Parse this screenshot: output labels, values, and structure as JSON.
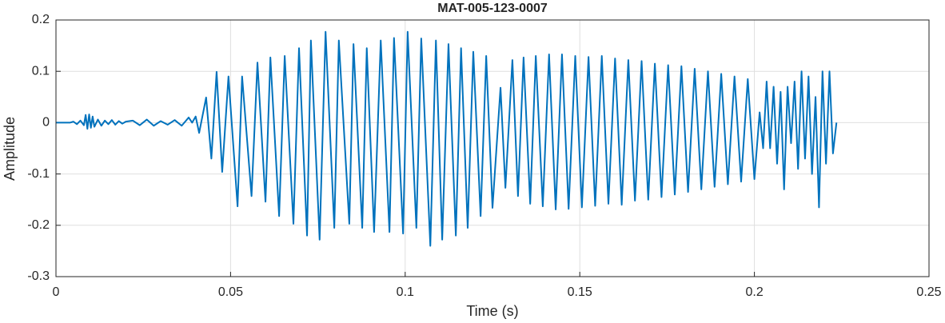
{
  "chart_data": {
    "type": "line",
    "title": "MAT-005-123-0007",
    "xlabel": "Time (s)",
    "ylabel": "Amplitude",
    "xlim": [
      0,
      0.25
    ],
    "ylim": [
      -0.3,
      0.2
    ],
    "xticks": [
      0,
      0.05,
      0.1,
      0.15,
      0.2,
      0.25
    ],
    "yticks": [
      -0.3,
      -0.2,
      -0.1,
      0,
      0.1,
      0.2
    ],
    "grid": true,
    "series": [
      {
        "color": "#0072BD",
        "x": [
          0,
          0.002,
          0.004,
          0.005,
          0.006,
          0.007,
          0.008,
          0.0085,
          0.009,
          0.0095,
          0.01,
          0.0105,
          0.011,
          0.012,
          0.013,
          0.014,
          0.015,
          0.016,
          0.017,
          0.018,
          0.019,
          0.02,
          0.022,
          0.024,
          0.026,
          0.028,
          0.03,
          0.032,
          0.034,
          0.036,
          0.038,
          0.039,
          0.04,
          0.041,
          0.043,
          0.0445,
          0.046,
          0.0476,
          0.0494,
          0.052,
          0.0533,
          0.056,
          0.0577,
          0.06,
          0.0614,
          0.0639,
          0.0655,
          0.068,
          0.0696,
          0.0719,
          0.073,
          0.0755,
          0.0772,
          0.0797,
          0.081,
          0.084,
          0.0852,
          0.0877,
          0.089,
          0.0911,
          0.093,
          0.0955,
          0.0968,
          0.0994,
          0.1007,
          0.1032,
          0.1046,
          0.1072,
          0.1088,
          0.1106,
          0.1124,
          0.1145,
          0.116,
          0.1179,
          0.1195,
          0.1216,
          0.1232,
          0.125,
          0.1273,
          0.1287,
          0.1307,
          0.1323,
          0.1339,
          0.1358,
          0.1374,
          0.1394,
          0.1412,
          0.1431,
          0.1449,
          0.1468,
          0.1487,
          0.1506,
          0.1525,
          0.1544,
          0.1563,
          0.1582,
          0.1601,
          0.162,
          0.1639,
          0.1658,
          0.1677,
          0.1696,
          0.1715,
          0.1734,
          0.1753,
          0.1772,
          0.1791,
          0.181,
          0.1829,
          0.1848,
          0.1867,
          0.1886,
          0.1905,
          0.1924,
          0.1943,
          0.1962,
          0.1981,
          0.2,
          0.2015,
          0.2025,
          0.2035,
          0.2045,
          0.2055,
          0.2065,
          0.2075,
          0.2085,
          0.2095,
          0.2105,
          0.2115,
          0.2125,
          0.2135,
          0.2145,
          0.2155,
          0.2165,
          0.2175,
          0.2185,
          0.2195,
          0.2205,
          0.2215,
          0.2225,
          0.2235
        ],
        "values": [
          0,
          0,
          0,
          0.002,
          -0.003,
          0.004,
          -0.005,
          0.015,
          -0.012,
          0.016,
          -0.01,
          0.012,
          -0.008,
          0.006,
          -0.006,
          0.004,
          -0.003,
          0.005,
          -0.004,
          0.003,
          -0.002,
          0.002,
          0.004,
          -0.005,
          0.006,
          -0.006,
          0.003,
          -0.004,
          0.005,
          -0.006,
          0.01,
          0,
          0.012,
          -0.02,
          0.049,
          -0.07,
          0.099,
          -0.096,
          0.09,
          -0.163,
          0.09,
          -0.143,
          0.117,
          -0.154,
          0.127,
          -0.182,
          0.13,
          -0.197,
          0.145,
          -0.22,
          0.16,
          -0.228,
          0.177,
          -0.205,
          0.16,
          -0.197,
          0.153,
          -0.205,
          0.145,
          -0.213,
          0.16,
          -0.213,
          0.165,
          -0.216,
          0.177,
          -0.205,
          0.164,
          -0.24,
          0.16,
          -0.228,
          0.153,
          -0.22,
          0.145,
          -0.205,
          0.138,
          -0.182,
          0.13,
          -0.166,
          0.068,
          -0.127,
          0.122,
          -0.143,
          0.127,
          -0.158,
          0.13,
          -0.163,
          0.133,
          -0.169,
          0.133,
          -0.168,
          0.13,
          -0.165,
          0.128,
          -0.162,
          0.13,
          -0.158,
          0.125,
          -0.16,
          0.122,
          -0.152,
          0.12,
          -0.15,
          0.115,
          -0.145,
          0.112,
          -0.14,
          0.11,
          -0.135,
          0.105,
          -0.13,
          0.1,
          -0.125,
          0.095,
          -0.12,
          0.09,
          -0.115,
          0.085,
          -0.11,
          0.02,
          -0.05,
          0.08,
          -0.05,
          0.07,
          -0.08,
          0.06,
          -0.13,
          0.07,
          -0.04,
          0.08,
          -0.09,
          0.1,
          -0.07,
          0.09,
          -0.1,
          0.05,
          -0.165,
          0.1,
          -0.08,
          0.1,
          -0.06,
          0
        ]
      }
    ]
  }
}
